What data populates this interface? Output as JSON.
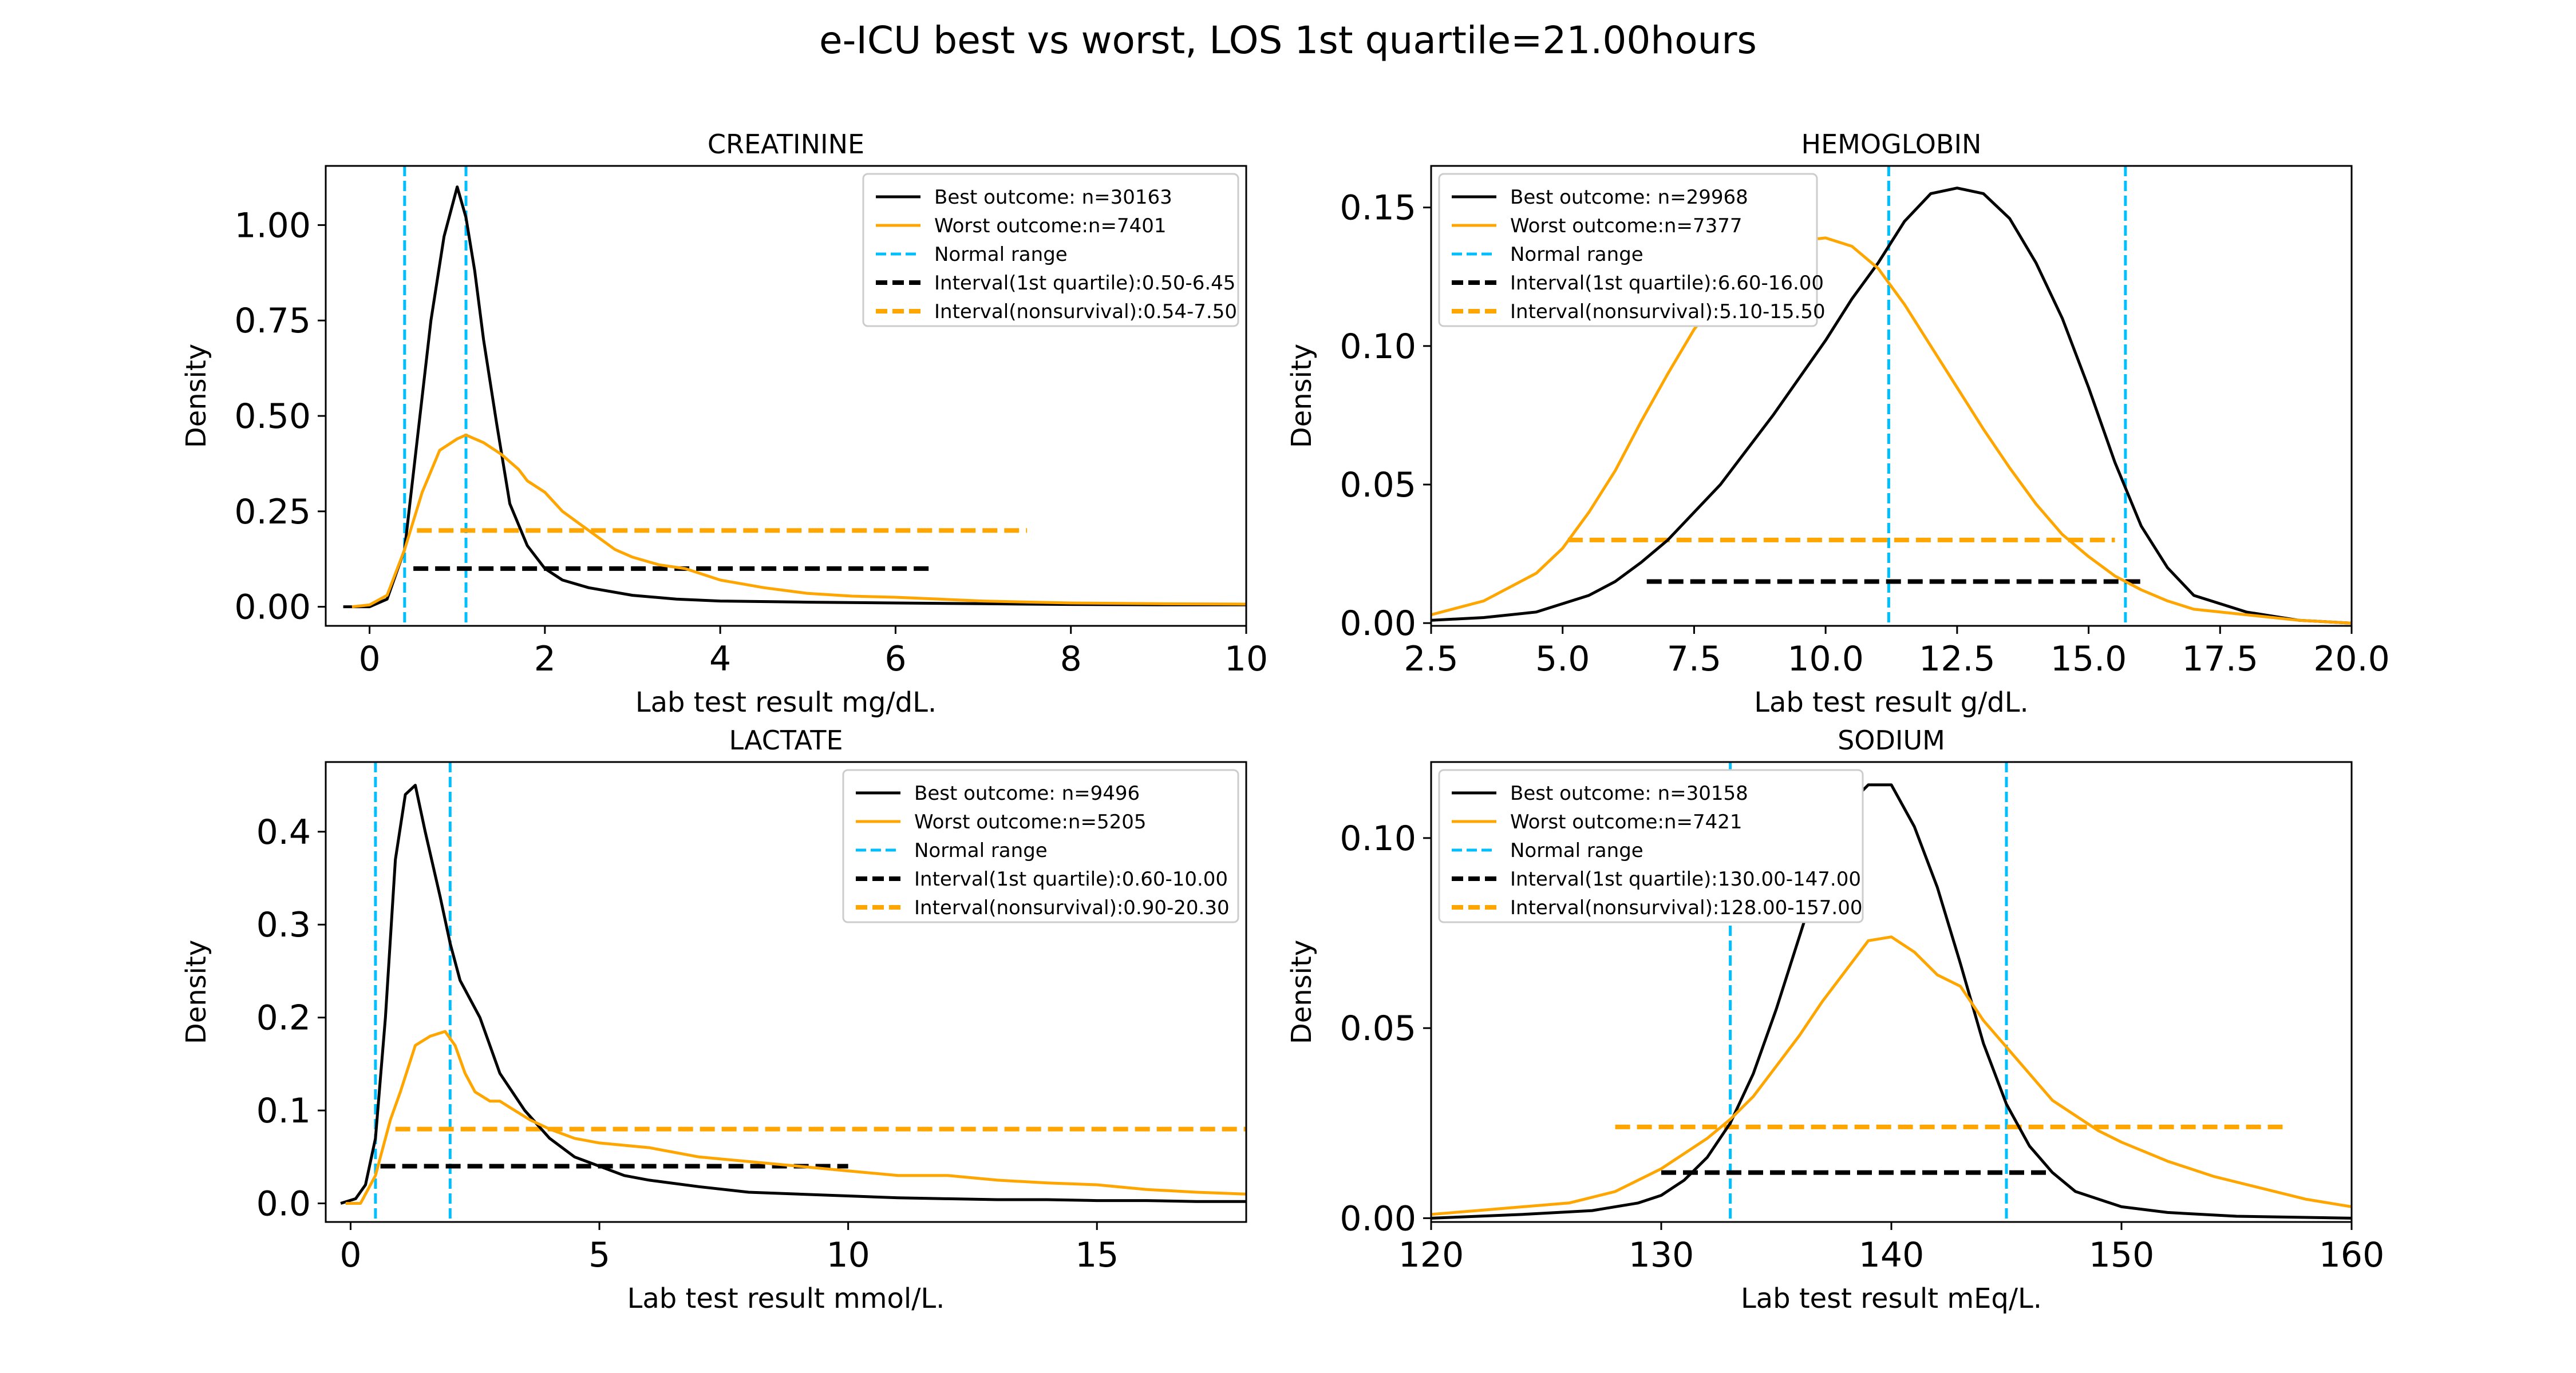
{
  "figure": {
    "suptitle": "e-ICU best vs worst, LOS 1st quartile=21.00hours"
  },
  "colors": {
    "best": "#000000",
    "worst": "#FFA500",
    "normal_range": "#00BFFF",
    "background": "#ffffff",
    "frame": "#000000"
  },
  "chart_data": [
    {
      "type": "line",
      "title": "CREATININE",
      "xlabel": "Lab test result mg/dL.",
      "ylabel": "Density",
      "xlim": [
        -0.5,
        10
      ],
      "ylim": [
        -0.05,
        1.155
      ],
      "xticks": [
        0,
        2,
        4,
        6,
        8,
        10
      ],
      "xtick_labels": [
        "0",
        "2",
        "4",
        "6",
        "8",
        "10"
      ],
      "yticks": [
        0,
        0.25,
        0.5,
        0.75,
        1.0
      ],
      "ytick_labels": [
        "0.00",
        "0.25",
        "0.50",
        "0.75",
        "1.00"
      ],
      "legend_position": "upper right",
      "legend": [
        "Best outcome: n=30163",
        "Worst outcome:n=7401",
        "Normal range",
        "Interval(1st quartile):0.50-6.45",
        "Interval(nonsurvival):0.54-7.50"
      ],
      "series": [
        {
          "name": "Best outcome: n=30163",
          "style": "best",
          "x": [
            -0.3,
            0,
            0.2,
            0.4,
            0.55,
            0.7,
            0.85,
            1.0,
            1.1,
            1.2,
            1.3,
            1.45,
            1.6,
            1.8,
            2.0,
            2.2,
            2.5,
            3.0,
            3.5,
            4.0,
            5.0,
            6.0,
            7.0,
            8.0,
            9.0,
            10.0
          ],
          "y": [
            0.0,
            0.0,
            0.02,
            0.15,
            0.45,
            0.75,
            0.97,
            1.1,
            1.02,
            0.88,
            0.7,
            0.48,
            0.27,
            0.16,
            0.1,
            0.07,
            0.05,
            0.03,
            0.02,
            0.015,
            0.012,
            0.01,
            0.008,
            0.006,
            0.005,
            0.005
          ]
        },
        {
          "name": "Worst outcome:n=7401",
          "style": "worst",
          "x": [
            -0.2,
            0,
            0.2,
            0.4,
            0.6,
            0.8,
            1.0,
            1.1,
            1.3,
            1.5,
            1.7,
            1.8,
            2.0,
            2.2,
            2.5,
            2.8,
            3.0,
            3.3,
            3.6,
            4.0,
            4.5,
            5.0,
            5.5,
            6.0,
            6.5,
            7.0,
            8.0,
            9.0,
            10.0
          ],
          "y": [
            0.0,
            0.005,
            0.03,
            0.15,
            0.3,
            0.41,
            0.44,
            0.45,
            0.43,
            0.4,
            0.36,
            0.33,
            0.3,
            0.25,
            0.2,
            0.15,
            0.13,
            0.11,
            0.1,
            0.07,
            0.05,
            0.035,
            0.028,
            0.025,
            0.02,
            0.015,
            0.01,
            0.008,
            0.007
          ]
        }
      ],
      "normal_range": [
        0.4,
        1.1
      ],
      "intervals": [
        {
          "name": "Interval(1st quartile):0.50-6.45",
          "style": "best",
          "from": 0.5,
          "to": 6.45,
          "y": 0.1
        },
        {
          "name": "Interval(nonsurvival):0.54-7.50",
          "style": "worst",
          "from": 0.54,
          "to": 7.5,
          "y": 0.2
        }
      ]
    },
    {
      "type": "line",
      "title": "HEMOGLOBIN",
      "xlabel": "Lab test result g/dL.",
      "ylabel": "Density",
      "xlim": [
        2.5,
        20
      ],
      "ylim": [
        -0.001,
        0.165
      ],
      "xticks": [
        2.5,
        5.0,
        7.5,
        10.0,
        12.5,
        15.0,
        17.5,
        20.0
      ],
      "xtick_labels": [
        "2.5",
        "5.0",
        "7.5",
        "10.0",
        "12.5",
        "15.0",
        "17.5",
        "20.0"
      ],
      "yticks": [
        0,
        0.05,
        0.1,
        0.15
      ],
      "ytick_labels": [
        "0.00",
        "0.05",
        "0.10",
        "0.15"
      ],
      "legend_position": "upper left",
      "legend": [
        "Best outcome: n=29968",
        "Worst outcome:n=7377",
        "Normal range",
        "Interval(1st quartile):6.60-16.00",
        "Interval(nonsurvival):5.10-15.50"
      ],
      "series": [
        {
          "name": "Best outcome: n=29968",
          "style": "best",
          "x": [
            2.5,
            3.5,
            4.5,
            5.5,
            6.0,
            6.5,
            7.0,
            8.0,
            9.0,
            10.0,
            10.5,
            11.0,
            11.5,
            12.0,
            12.5,
            13.0,
            13.5,
            14.0,
            14.5,
            15.0,
            15.5,
            16.0,
            16.5,
            17.0,
            18.0,
            19.0,
            20.0
          ],
          "y": [
            0.001,
            0.002,
            0.004,
            0.01,
            0.015,
            0.022,
            0.03,
            0.05,
            0.075,
            0.102,
            0.117,
            0.13,
            0.145,
            0.155,
            0.157,
            0.155,
            0.146,
            0.13,
            0.11,
            0.085,
            0.058,
            0.035,
            0.02,
            0.01,
            0.004,
            0.001,
            0.0
          ]
        },
        {
          "name": "Worst outcome:n=7377",
          "style": "worst",
          "x": [
            2.5,
            3.5,
            4.5,
            5.0,
            5.5,
            6.0,
            6.5,
            7.0,
            7.5,
            8.0,
            8.5,
            9.0,
            9.5,
            10.0,
            10.5,
            11.0,
            11.5,
            12.0,
            12.5,
            13.0,
            13.5,
            14.0,
            14.5,
            15.0,
            15.5,
            16.0,
            16.5,
            17.0,
            18.0,
            19.0,
            20.0
          ],
          "y": [
            0.003,
            0.008,
            0.018,
            0.027,
            0.04,
            0.055,
            0.073,
            0.09,
            0.106,
            0.118,
            0.127,
            0.134,
            0.138,
            0.139,
            0.136,
            0.128,
            0.115,
            0.1,
            0.085,
            0.07,
            0.056,
            0.043,
            0.032,
            0.024,
            0.017,
            0.012,
            0.008,
            0.005,
            0.003,
            0.001,
            0.0
          ]
        }
      ],
      "normal_range": [
        11.2,
        15.7
      ],
      "intervals": [
        {
          "name": "Interval(1st quartile):6.60-16.00",
          "style": "best",
          "from": 6.6,
          "to": 16.0,
          "y": 0.015
        },
        {
          "name": "Interval(nonsurvival):5.10-15.50",
          "style": "worst",
          "from": 5.1,
          "to": 15.5,
          "y": 0.03
        }
      ]
    },
    {
      "type": "line",
      "title": "LACTATE",
      "xlabel": "Lab test result mmol/L.",
      "ylabel": "Density",
      "xlim": [
        -0.5,
        18
      ],
      "ylim": [
        -0.02,
        0.475
      ],
      "xticks": [
        0,
        5,
        10,
        15
      ],
      "xtick_labels": [
        "0",
        "5",
        "10",
        "15"
      ],
      "yticks": [
        0,
        0.1,
        0.2,
        0.3,
        0.4
      ],
      "ytick_labels": [
        "0.0",
        "0.1",
        "0.2",
        "0.3",
        "0.4"
      ],
      "legend_position": "upper right",
      "legend": [
        "Best outcome: n=9496",
        "Worst outcome:n=5205",
        "Normal range",
        "Interval(1st quartile):0.60-10.00",
        "Interval(nonsurvival):0.90-20.30"
      ],
      "series": [
        {
          "name": "Best outcome: n=9496",
          "style": "best",
          "x": [
            -0.2,
            0.1,
            0.3,
            0.5,
            0.7,
            0.9,
            1.1,
            1.3,
            1.5,
            1.8,
            2.0,
            2.2,
            2.6,
            3.0,
            3.5,
            4.0,
            4.5,
            5.0,
            5.5,
            6.0,
            7.0,
            8.0,
            9.0,
            10.0,
            11.0,
            12.0,
            13.0,
            14.0,
            15.0,
            16.0,
            17.0,
            18.0
          ],
          "y": [
            0.0,
            0.005,
            0.02,
            0.07,
            0.2,
            0.37,
            0.44,
            0.45,
            0.4,
            0.33,
            0.28,
            0.24,
            0.2,
            0.14,
            0.1,
            0.07,
            0.05,
            0.04,
            0.03,
            0.025,
            0.018,
            0.012,
            0.01,
            0.008,
            0.006,
            0.005,
            0.004,
            0.004,
            0.003,
            0.003,
            0.002,
            0.002
          ]
        },
        {
          "name": "Worst outcome:n=5205",
          "style": "worst",
          "x": [
            -0.1,
            0.2,
            0.5,
            0.8,
            1.0,
            1.3,
            1.6,
            1.9,
            2.1,
            2.3,
            2.5,
            2.8,
            3.0,
            3.3,
            3.6,
            4.0,
            4.5,
            5.0,
            6.0,
            7.0,
            8.0,
            9.0,
            10.0,
            11.0,
            12.0,
            13.0,
            14.0,
            15.0,
            16.0,
            17.0,
            18.0
          ],
          "y": [
            0.0,
            0.0,
            0.03,
            0.09,
            0.12,
            0.17,
            0.18,
            0.185,
            0.17,
            0.14,
            0.12,
            0.11,
            0.11,
            0.1,
            0.09,
            0.08,
            0.07,
            0.065,
            0.06,
            0.05,
            0.045,
            0.04,
            0.035,
            0.03,
            0.03,
            0.025,
            0.022,
            0.02,
            0.015,
            0.012,
            0.01
          ]
        }
      ],
      "normal_range": [
        0.5,
        2.0
      ],
      "intervals": [
        {
          "name": "Interval(1st quartile):0.60-10.00",
          "style": "best",
          "from": 0.6,
          "to": 10.0,
          "y": 0.04
        },
        {
          "name": "Interval(nonsurvival):0.90-20.30",
          "style": "worst",
          "from": 0.9,
          "to": 20.3,
          "y": 0.08
        }
      ]
    },
    {
      "type": "line",
      "title": "SODIUM",
      "xlabel": "Lab test result mEq/L.",
      "ylabel": "Density",
      "xlim": [
        120,
        160
      ],
      "ylim": [
        -0.001,
        0.12
      ],
      "xticks": [
        120,
        130,
        140,
        150,
        160
      ],
      "xtick_labels": [
        "120",
        "130",
        "140",
        "150",
        "160"
      ],
      "yticks": [
        0,
        0.05,
        0.1
      ],
      "ytick_labels": [
        "0.00",
        "0.05",
        "0.10"
      ],
      "legend_position": "upper left",
      "legend": [
        "Best outcome: n=30158",
        "Worst outcome:n=7421",
        "Normal range",
        "Interval(1st quartile):130.00-147.00",
        "Interval(nonsurvival):128.00-157.00"
      ],
      "series": [
        {
          "name": "Best outcome: n=30158",
          "style": "best",
          "x": [
            120,
            124,
            127,
            129,
            130,
            131,
            132,
            133,
            134,
            135,
            136,
            137,
            138,
            139,
            140,
            141,
            142,
            143,
            144,
            145,
            146,
            147,
            148,
            150,
            152,
            155,
            160
          ],
          "y": [
            0.0,
            0.001,
            0.002,
            0.004,
            0.006,
            0.01,
            0.016,
            0.025,
            0.038,
            0.055,
            0.074,
            0.093,
            0.108,
            0.114,
            0.114,
            0.103,
            0.087,
            0.067,
            0.046,
            0.03,
            0.019,
            0.012,
            0.007,
            0.003,
            0.0015,
            0.0005,
            0.0
          ]
        },
        {
          "name": "Worst outcome:n=7421",
          "style": "worst",
          "x": [
            120,
            122,
            124,
            126,
            128,
            129,
            130,
            131,
            132,
            133,
            134,
            135,
            136,
            137,
            138,
            139,
            140,
            141,
            142,
            143,
            144,
            145,
            146,
            147,
            148,
            149,
            150,
            152,
            154,
            156,
            158,
            160
          ],
          "y": [
            0.001,
            0.002,
            0.003,
            0.004,
            0.007,
            0.01,
            0.013,
            0.017,
            0.021,
            0.026,
            0.032,
            0.04,
            0.048,
            0.057,
            0.065,
            0.073,
            0.074,
            0.07,
            0.064,
            0.061,
            0.052,
            0.045,
            0.038,
            0.031,
            0.027,
            0.023,
            0.02,
            0.015,
            0.011,
            0.008,
            0.005,
            0.003
          ]
        }
      ],
      "normal_range": [
        133,
        145
      ],
      "intervals": [
        {
          "name": "Interval(1st quartile):130.00-147.00",
          "style": "best",
          "from": 130,
          "to": 147,
          "y": 0.012
        },
        {
          "name": "Interval(nonsurvival):128.00-157.00",
          "style": "worst",
          "from": 128,
          "to": 157,
          "y": 0.024
        }
      ]
    }
  ]
}
